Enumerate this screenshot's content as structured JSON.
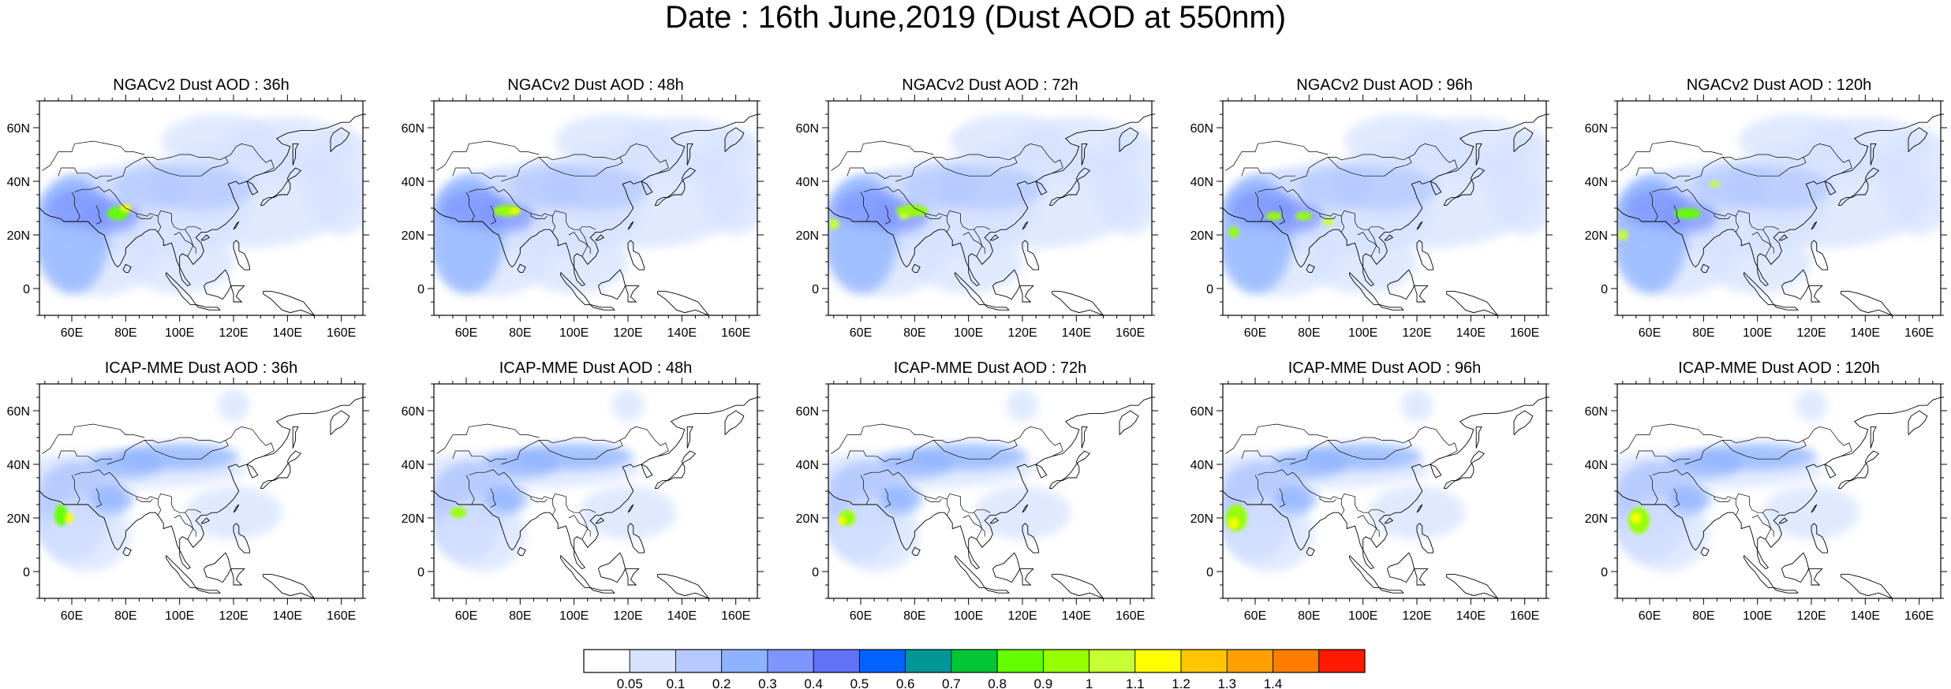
{
  "title": "Date : 16th June,2019 (Dust AOD at 550nm)",
  "panels": [
    {
      "title": "NGACv2 Dust AOD : 36h"
    },
    {
      "title": "NGACv2 Dust AOD : 48h"
    },
    {
      "title": "NGACv2 Dust AOD : 72h"
    },
    {
      "title": "NGACv2 Dust AOD : 96h"
    },
    {
      "title": "NGACv2 Dust AOD : 120h"
    },
    {
      "title": "ICAP-MME Dust AOD : 36h"
    },
    {
      "title": "ICAP-MME Dust AOD : 48h"
    },
    {
      "title": "ICAP-MME Dust AOD : 72h"
    },
    {
      "title": "ICAP-MME Dust AOD : 96h"
    },
    {
      "title": "ICAP-MME Dust AOD : 120h"
    }
  ],
  "map_extent": {
    "lon": [
      48,
      168
    ],
    "lat": [
      -10,
      70
    ]
  },
  "x_ticks": [
    "60E",
    "80E",
    "100E",
    "120E",
    "140E",
    "160E"
  ],
  "y_ticks": [
    "60N",
    "40N",
    "20N",
    "0"
  ],
  "colorbar": {
    "labels": [
      "0.05",
      "0.1",
      "0.2",
      "0.3",
      "0.4",
      "0.5",
      "0.6",
      "0.7",
      "0.8",
      "0.9",
      "1",
      "1.1",
      "1.2",
      "1.3",
      "1.4"
    ],
    "colors": [
      "#ffffff",
      "#d6e2ff",
      "#b5c9ff",
      "#8eb2ff",
      "#7f96ff",
      "#6370f8",
      "#0063ff",
      "#009696",
      "#00c633",
      "#63ff00",
      "#96ff00",
      "#c6ff33",
      "#ffff00",
      "#ffc600",
      "#ffa000",
      "#ff7c00",
      "#ff1900"
    ]
  }
}
